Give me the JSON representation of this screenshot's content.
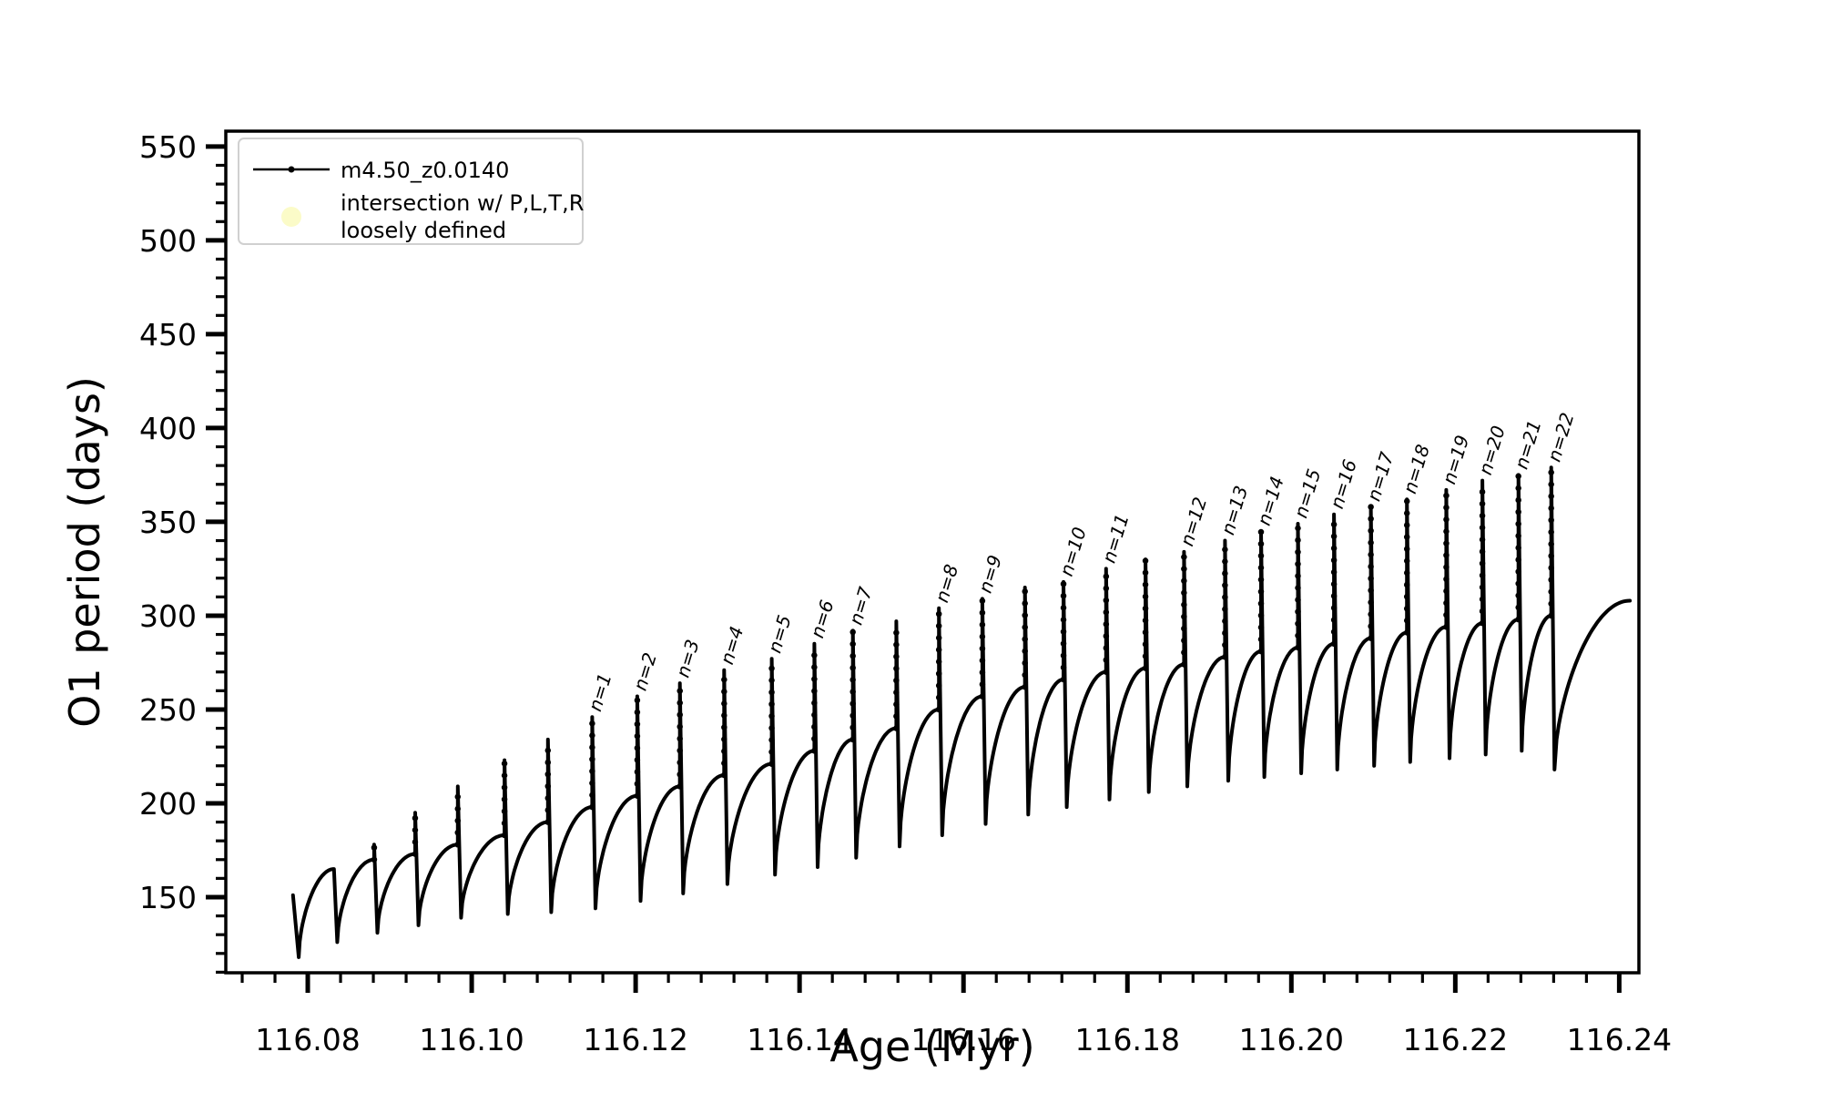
{
  "window": {
    "background": "#ffffff",
    "foreground": "#000000"
  },
  "chart_data": {
    "type": "line",
    "title": "",
    "xlabel": "Age (Myr)",
    "ylabel": "O1 period (days)",
    "xlim": [
      116.07,
      116.2424
    ],
    "ylim": [
      109.7,
      558.2
    ],
    "x_ticks": [
      116.08,
      116.1,
      116.12,
      116.14,
      116.16,
      116.18,
      116.2,
      116.22,
      116.24
    ],
    "x_tick_decimals": 2,
    "x_minor_step": 0.004,
    "y_ticks": [
      150,
      200,
      250,
      300,
      350,
      400,
      450,
      500,
      550
    ],
    "y_minor_step": 10,
    "grid": false,
    "legend": {
      "position": "upper-left",
      "entries": [
        {
          "label": "m4.50_z0.0140",
          "marker": "line-dot",
          "color": "#000000"
        },
        {
          "label_lines": [
            "intersection w/ P,L,T,R",
            "loosely defined"
          ],
          "marker": "circle",
          "color": "#fbfbc8"
        }
      ]
    },
    "series": [
      {
        "name": "m4.50_z0.0140",
        "color": "#000000",
        "start": {
          "x": 116.0782,
          "y": 151,
          "dip_x": 116.0789,
          "dip": 118
        },
        "events": [
          {
            "x": 116.0832,
            "top": 165,
            "plateau": 165,
            "dip": 126,
            "label": ""
          },
          {
            "x": 116.0881,
            "top": 178,
            "plateau": 170,
            "dip": 131,
            "label": ""
          },
          {
            "x": 116.0931,
            "top": 195,
            "plateau": 173,
            "dip": 135,
            "label": ""
          },
          {
            "x": 116.0983,
            "top": 209,
            "plateau": 178,
            "dip": 139,
            "label": ""
          },
          {
            "x": 116.104,
            "top": 223,
            "plateau": 183,
            "dip": 141,
            "label": ""
          },
          {
            "x": 116.1093,
            "top": 234,
            "plateau": 190,
            "dip": 142,
            "label": ""
          },
          {
            "x": 116.1147,
            "top": 246,
            "plateau": 198,
            "dip": 144,
            "label": "n=1"
          },
          {
            "x": 116.1202,
            "top": 257,
            "plateau": 204,
            "dip": 148,
            "label": "n=2"
          },
          {
            "x": 116.1254,
            "top": 264,
            "plateau": 209,
            "dip": 152,
            "label": "n=3"
          },
          {
            "x": 116.1308,
            "top": 271,
            "plateau": 215,
            "dip": 157,
            "label": "n=4"
          },
          {
            "x": 116.1366,
            "top": 277,
            "plateau": 221,
            "dip": 162,
            "label": "n=5"
          },
          {
            "x": 116.1418,
            "top": 285,
            "plateau": 228,
            "dip": 166,
            "label": "n=6"
          },
          {
            "x": 116.1465,
            "top": 292,
            "plateau": 234,
            "dip": 171,
            "label": "n=7"
          },
          {
            "x": 116.1518,
            "top": 297,
            "plateau": 240,
            "dip": 177,
            "label": ""
          },
          {
            "x": 116.157,
            "top": 304,
            "plateau": 250,
            "dip": 183,
            "label": "n=8"
          },
          {
            "x": 116.1623,
            "top": 309,
            "plateau": 257,
            "dip": 189,
            "label": "n=9"
          },
          {
            "x": 116.1675,
            "top": 315,
            "plateau": 262,
            "dip": 194,
            "label": ""
          },
          {
            "x": 116.1722,
            "top": 318,
            "plateau": 266,
            "dip": 198,
            "label": "n=10"
          },
          {
            "x": 116.1774,
            "top": 325,
            "plateau": 270,
            "dip": 202,
            "label": "n=11"
          },
          {
            "x": 116.1822,
            "top": 330,
            "plateau": 272,
            "dip": 206,
            "label": ""
          },
          {
            "x": 116.1869,
            "top": 334,
            "plateau": 274,
            "dip": 209,
            "label": "n=12"
          },
          {
            "x": 116.1919,
            "top": 340,
            "plateau": 278,
            "dip": 212,
            "label": "n=13"
          },
          {
            "x": 116.1963,
            "top": 345,
            "plateau": 281,
            "dip": 214,
            "label": "n=14"
          },
          {
            "x": 116.2008,
            "top": 349,
            "plateau": 283,
            "dip": 216,
            "label": "n=15"
          },
          {
            "x": 116.2052,
            "top": 354,
            "plateau": 285,
            "dip": 218,
            "label": "n=16"
          },
          {
            "x": 116.2097,
            "top": 358,
            "plateau": 288,
            "dip": 220,
            "label": "n=17"
          },
          {
            "x": 116.2141,
            "top": 362,
            "plateau": 291,
            "dip": 222,
            "label": "n=18"
          },
          {
            "x": 116.2189,
            "top": 367,
            "plateau": 294,
            "dip": 224,
            "label": "n=19"
          },
          {
            "x": 116.2233,
            "top": 372,
            "plateau": 296,
            "dip": 226,
            "label": "n=20"
          },
          {
            "x": 116.2277,
            "top": 375,
            "plateau": 298,
            "dip": 228,
            "label": "n=21"
          },
          {
            "x": 116.2317,
            "top": 379,
            "plateau": 300,
            "dip": 218,
            "label": "n=22"
          }
        ],
        "end": {
          "x": 116.2413,
          "y": 308
        }
      }
    ]
  }
}
